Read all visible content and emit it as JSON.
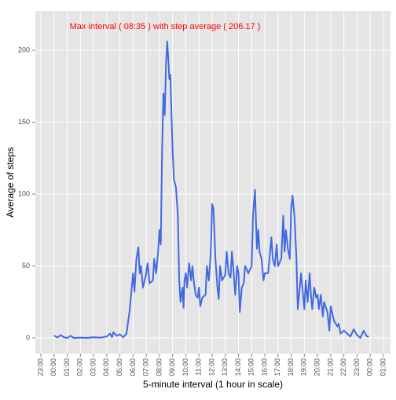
{
  "chart_data": {
    "type": "line",
    "annotation": "Max interval ( 08:35 ) with step average ( 206.17 )",
    "annotation_color": "#ff0000",
    "x_label": "5-minute interval (1 hour in scale)",
    "y_label": "Average of steps",
    "grid": true,
    "xlim": [
      -1.42,
      25.54
    ],
    "ylim": [
      -10.9,
      227.3
    ],
    "yticks": [
      0,
      50,
      100,
      150,
      200
    ],
    "xticks": [
      {
        "value": -1,
        "label": "23:00"
      },
      {
        "value": 0,
        "label": "00:00"
      },
      {
        "value": 1,
        "label": "01:00"
      },
      {
        "value": 2,
        "label": "02:00"
      },
      {
        "value": 3,
        "label": "03:00"
      },
      {
        "value": 4,
        "label": "04:00"
      },
      {
        "value": 5,
        "label": "05:00"
      },
      {
        "value": 6,
        "label": "06:00"
      },
      {
        "value": 7,
        "label": "07:00"
      },
      {
        "value": 8,
        "label": "08:00"
      },
      {
        "value": 9,
        "label": "09:00"
      },
      {
        "value": 10,
        "label": "10:00"
      },
      {
        "value": 11,
        "label": "11:00"
      },
      {
        "value": 12,
        "label": "12:00"
      },
      {
        "value": 13,
        "label": "13:00"
      },
      {
        "value": 14,
        "label": "14:00"
      },
      {
        "value": 15,
        "label": "15:00"
      },
      {
        "value": 16,
        "label": "16:00"
      },
      {
        "value": 17,
        "label": "17:00"
      },
      {
        "value": 18,
        "label": "18:00"
      },
      {
        "value": 19,
        "label": "19:00"
      },
      {
        "value": 20,
        "label": "20:00"
      },
      {
        "value": 21,
        "label": "21:00"
      },
      {
        "value": 22,
        "label": "22:00"
      },
      {
        "value": 23,
        "label": "23:00"
      },
      {
        "value": 24,
        "label": "00:00"
      },
      {
        "value": 25,
        "label": "01:00"
      }
    ],
    "series": [
      {
        "color": "#4169e1",
        "x": [
          0,
          0.25,
          0.5,
          0.75,
          1.0,
          1.25,
          1.5,
          2.0,
          2.5,
          3.0,
          3.5,
          4.0,
          4.25,
          4.4,
          4.5,
          4.75,
          5.0,
          5.25,
          5.5,
          5.75,
          6.0,
          6.1,
          6.25,
          6.4,
          6.5,
          6.6,
          6.75,
          7.0,
          7.1,
          7.25,
          7.5,
          7.6,
          7.75,
          7.9,
          8.0,
          8.1,
          8.2,
          8.3,
          8.4,
          8.5,
          8.583,
          8.67,
          8.75,
          8.83,
          8.9,
          9.0,
          9.1,
          9.25,
          9.4,
          9.5,
          9.6,
          9.75,
          9.83,
          9.9,
          10.0,
          10.1,
          10.25,
          10.4,
          10.5,
          10.6,
          10.75,
          10.9,
          11.0,
          11.1,
          11.25,
          11.5,
          11.6,
          11.75,
          11.9,
          12.0,
          12.1,
          12.25,
          12.4,
          12.5,
          12.6,
          12.75,
          13.0,
          13.1,
          13.25,
          13.4,
          13.5,
          13.6,
          13.75,
          13.9,
          14.0,
          14.1,
          14.25,
          14.4,
          14.5,
          14.75,
          15.0,
          15.1,
          15.25,
          15.4,
          15.5,
          15.6,
          15.75,
          15.9,
          16.0,
          16.25,
          16.5,
          16.6,
          16.75,
          16.9,
          17.0,
          17.25,
          17.4,
          17.5,
          17.6,
          17.75,
          17.9,
          18.0,
          18.1,
          18.25,
          18.4,
          18.5,
          18.6,
          18.75,
          18.9,
          19.0,
          19.1,
          19.25,
          19.4,
          19.5,
          19.6,
          19.75,
          19.9,
          20.0,
          20.1,
          20.25,
          20.4,
          20.5,
          20.75,
          20.9,
          21.0,
          21.25,
          21.5,
          21.6,
          21.75,
          22.0,
          22.25,
          22.5,
          22.75,
          23.0,
          23.25,
          23.5,
          23.75,
          23.9
        ],
        "values": [
          1.7,
          0.3,
          2,
          0.5,
          0,
          1.5,
          0,
          0.2,
          0,
          0.5,
          0.2,
          1,
          3,
          0.5,
          4,
          1.5,
          2.5,
          0.5,
          3,
          20,
          45,
          32,
          55,
          63,
          45,
          50,
          35,
          45,
          52,
          38,
          40,
          55,
          45,
          60,
          75,
          65,
          130,
          170,
          155,
          190,
          206.17,
          195,
          180,
          183,
          160,
          130,
          110,
          105,
          85,
          40,
          25,
          35,
          21,
          40,
          45,
          35,
          52,
          40,
          50,
          40,
          30,
          28,
          35,
          22,
          28,
          30,
          50,
          40,
          60,
          93,
          90,
          55,
          35,
          27,
          50,
          40,
          44,
          60,
          45,
          42,
          60,
          50,
          30,
          50,
          45,
          18,
          35,
          38,
          50,
          45,
          50,
          85,
          103,
          62,
          75,
          60,
          55,
          40,
          45,
          45,
          70,
          55,
          50,
          65,
          50,
          55,
          85,
          60,
          75,
          62,
          55,
          90,
          99,
          85,
          55,
          20,
          30,
          45,
          30,
          20,
          40,
          25,
          45,
          30,
          20,
          35,
          28,
          30,
          20,
          30,
          15,
          25,
          18,
          5,
          22,
          12,
          8,
          10,
          3,
          5,
          3,
          1,
          6,
          2,
          0,
          5,
          1,
          1
        ]
      }
    ]
  }
}
